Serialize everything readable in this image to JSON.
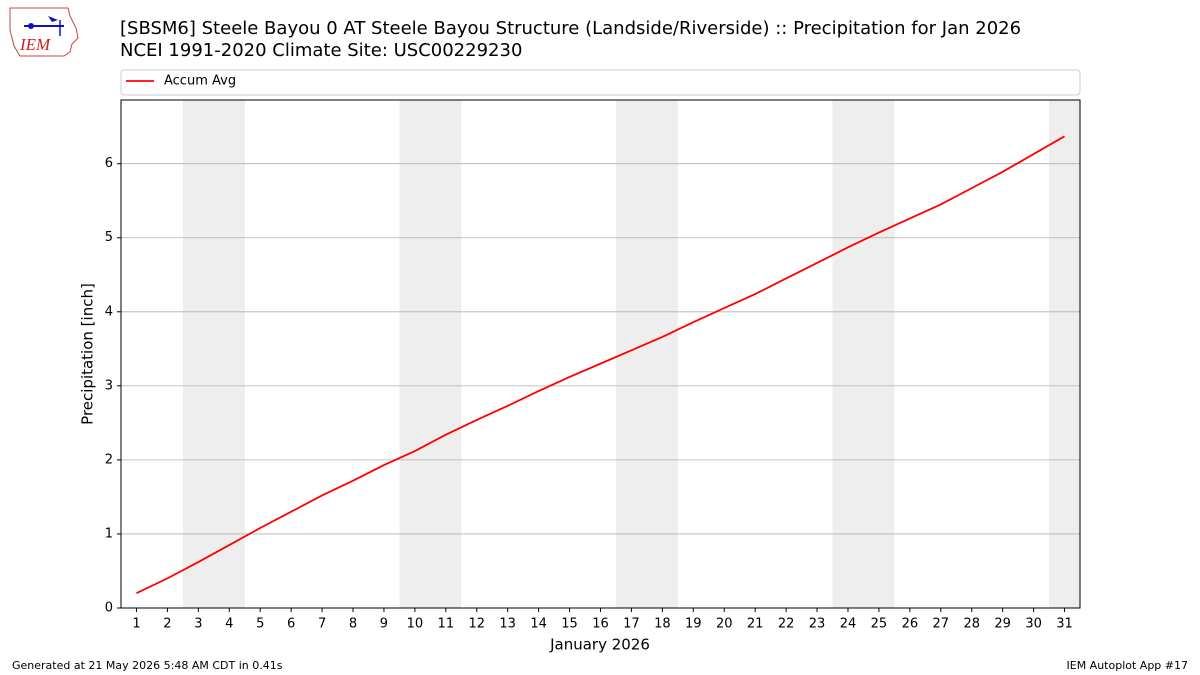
{
  "logo": "IEM",
  "chart_data": {
    "type": "line",
    "title": "[SBSM6] Steele Bayou 0 AT Steele Bayou Structure (Landside/Riverside) :: Precipitation for Jan 2026",
    "subtitle": "NCEI 1991-2020 Climate Site: USC00229230",
    "xlabel": "January 2026",
    "ylabel": "Precipitation [inch]",
    "x": [
      1,
      2,
      3,
      4,
      5,
      6,
      7,
      8,
      9,
      10,
      11,
      12,
      13,
      14,
      15,
      16,
      17,
      18,
      19,
      20,
      21,
      22,
      23,
      24,
      25,
      26,
      27,
      28,
      29,
      30,
      31
    ],
    "series": [
      {
        "name": "Accum Avg",
        "color": "#ff0000",
        "values": [
          0.2,
          0.4,
          0.62,
          0.85,
          1.08,
          1.3,
          1.52,
          1.72,
          1.93,
          2.12,
          2.34,
          2.54,
          2.73,
          2.93,
          3.12,
          3.3,
          3.48,
          3.66,
          3.86,
          4.05,
          4.24,
          4.45,
          4.66,
          4.87,
          5.07,
          5.26,
          5.45,
          5.67,
          5.89,
          6.13,
          6.37
        ]
      }
    ],
    "xlim": [
      0.5,
      31.5
    ],
    "xticks": [
      1,
      2,
      3,
      4,
      5,
      6,
      7,
      8,
      9,
      10,
      11,
      12,
      13,
      14,
      15,
      16,
      17,
      18,
      19,
      20,
      21,
      22,
      23,
      24,
      25,
      26,
      27,
      28,
      29,
      30,
      31
    ],
    "ylim": [
      0,
      6.86
    ],
    "yticks": [
      0,
      1,
      2,
      3,
      4,
      5,
      6
    ],
    "grid": true,
    "weekend_days": [
      3,
      4,
      10,
      11,
      17,
      18,
      24,
      25,
      31
    ],
    "shade_color": "#eeeeee",
    "legend": "top"
  },
  "footer": {
    "left": "Generated at 21 May 2026 5:48 AM CDT in 0.41s",
    "right": "IEM Autoplot App #17"
  }
}
